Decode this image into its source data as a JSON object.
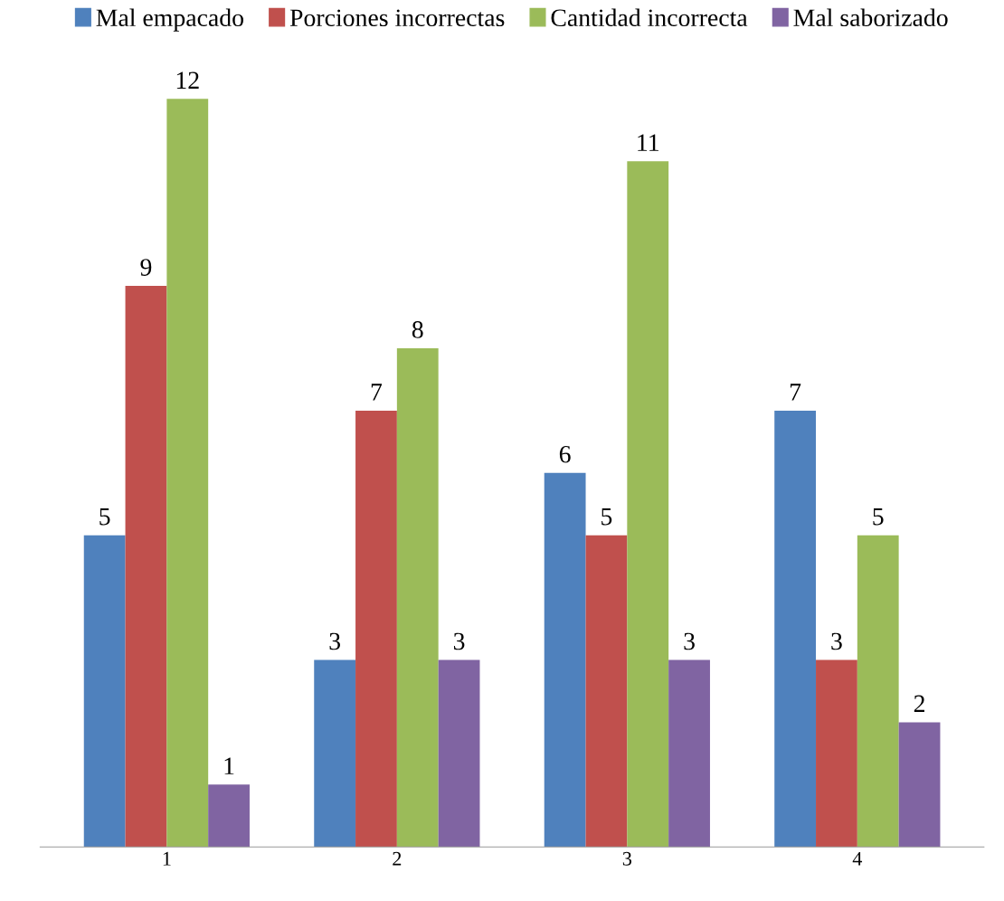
{
  "chart_data": {
    "type": "bar",
    "categories": [
      "1",
      "2",
      "3",
      "4"
    ],
    "series": [
      {
        "name": "Mal empacado",
        "color": "#4f81bd",
        "values": [
          5,
          3,
          6,
          7
        ]
      },
      {
        "name": "Porciones incorrectas",
        "color": "#c0504d",
        "values": [
          9,
          7,
          5,
          3
        ]
      },
      {
        "name": "Cantidad incorrecta",
        "color": "#9bbb59",
        "values": [
          12,
          8,
          11,
          5
        ]
      },
      {
        "name": "Mal saborizado",
        "color": "#8064a2",
        "values": [
          1,
          3,
          3,
          2
        ]
      }
    ],
    "data_labels": true,
    "legend": "top",
    "grid": false,
    "tick_labels": "x"
  }
}
